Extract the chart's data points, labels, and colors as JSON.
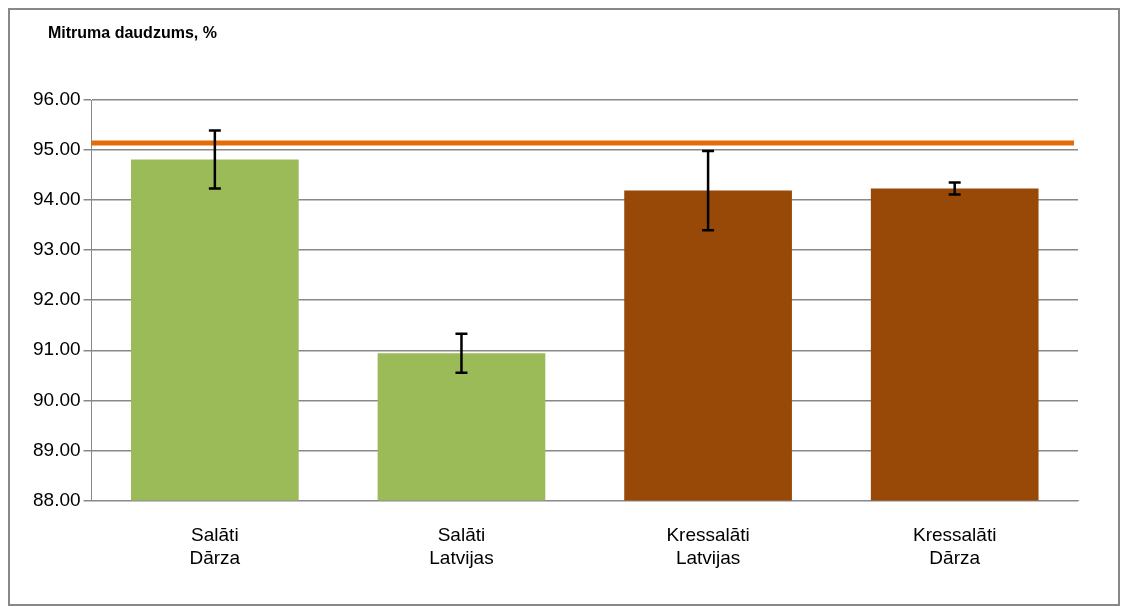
{
  "chart_data": {
    "type": "bar",
    "ylabel": "Mitruma daudzums, %",
    "categories": [
      "Salāti\nDārza",
      "Salāti\nLatvijas",
      "Kressalāti\nLatvijas",
      "Kressalāti\nDārza"
    ],
    "values": [
      94.81,
      90.94,
      94.19,
      94.23
    ],
    "colors": [
      "#9bbb59",
      "#9bbb59",
      "#984807",
      "#984807"
    ],
    "errors": [
      0.58,
      0.39,
      0.79,
      0.12
    ],
    "ylim": [
      88,
      96
    ],
    "yticks": [
      {
        "value": 88,
        "label": "88.00"
      },
      {
        "value": 89,
        "label": "89.00"
      },
      {
        "value": 90,
        "label": "90.00"
      },
      {
        "value": 91,
        "label": "91.00"
      },
      {
        "value": 92,
        "label": "92.00"
      },
      {
        "value": 93,
        "label": "93.00"
      },
      {
        "value": 94,
        "label": "94.00"
      },
      {
        "value": 95,
        "label": "95.00"
      },
      {
        "value": 96,
        "label": "96.00"
      }
    ],
    "ref_lines": [
      {
        "axis": "y",
        "value": 95.14,
        "color": "#e36c09"
      }
    ],
    "grid": "y",
    "legend": false
  }
}
